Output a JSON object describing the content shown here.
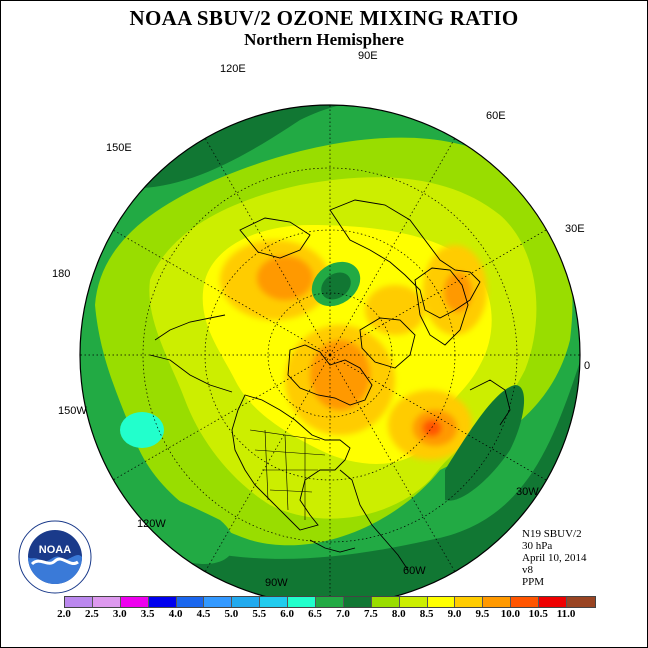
{
  "header": {
    "title": "NOAA SBUV/2 OZONE MIXING RATIO",
    "subtitle": "Northern Hemisphere"
  },
  "longitude_labels": [
    "90E",
    "120E",
    "60E",
    "150E",
    "30E",
    "180",
    "0",
    "150W",
    "30W",
    "120W",
    "60W",
    "90W"
  ],
  "info": {
    "satellite": "N19 SBUV/2",
    "pressure": "30 hPa",
    "date": "April 10, 2014",
    "version": "v8",
    "units": "PPM"
  },
  "logo": {
    "icon": "noaa-logo-icon",
    "text": "NOAA"
  },
  "colorbar": {
    "ticks": [
      "2.0",
      "2.5",
      "3.0",
      "3.5",
      "4.0",
      "4.5",
      "5.0",
      "5.5",
      "6.0",
      "6.5",
      "7.0",
      "7.5",
      "8.0",
      "8.5",
      "9.0",
      "9.5",
      "10.0",
      "10.5",
      "11.0"
    ],
    "colors": [
      "#bb88ee",
      "#dd99ee",
      "#ee00ee",
      "#0000ee",
      "#1a66ee",
      "#3399ff",
      "#22aaee",
      "#22ccee",
      "#22ffcc",
      "#22aa44",
      "#117733",
      "#99dd00",
      "#ccee00",
      "#ffff00",
      "#ffcc00",
      "#ff9900",
      "#ff5500",
      "#ee0000",
      "#994422"
    ]
  }
}
